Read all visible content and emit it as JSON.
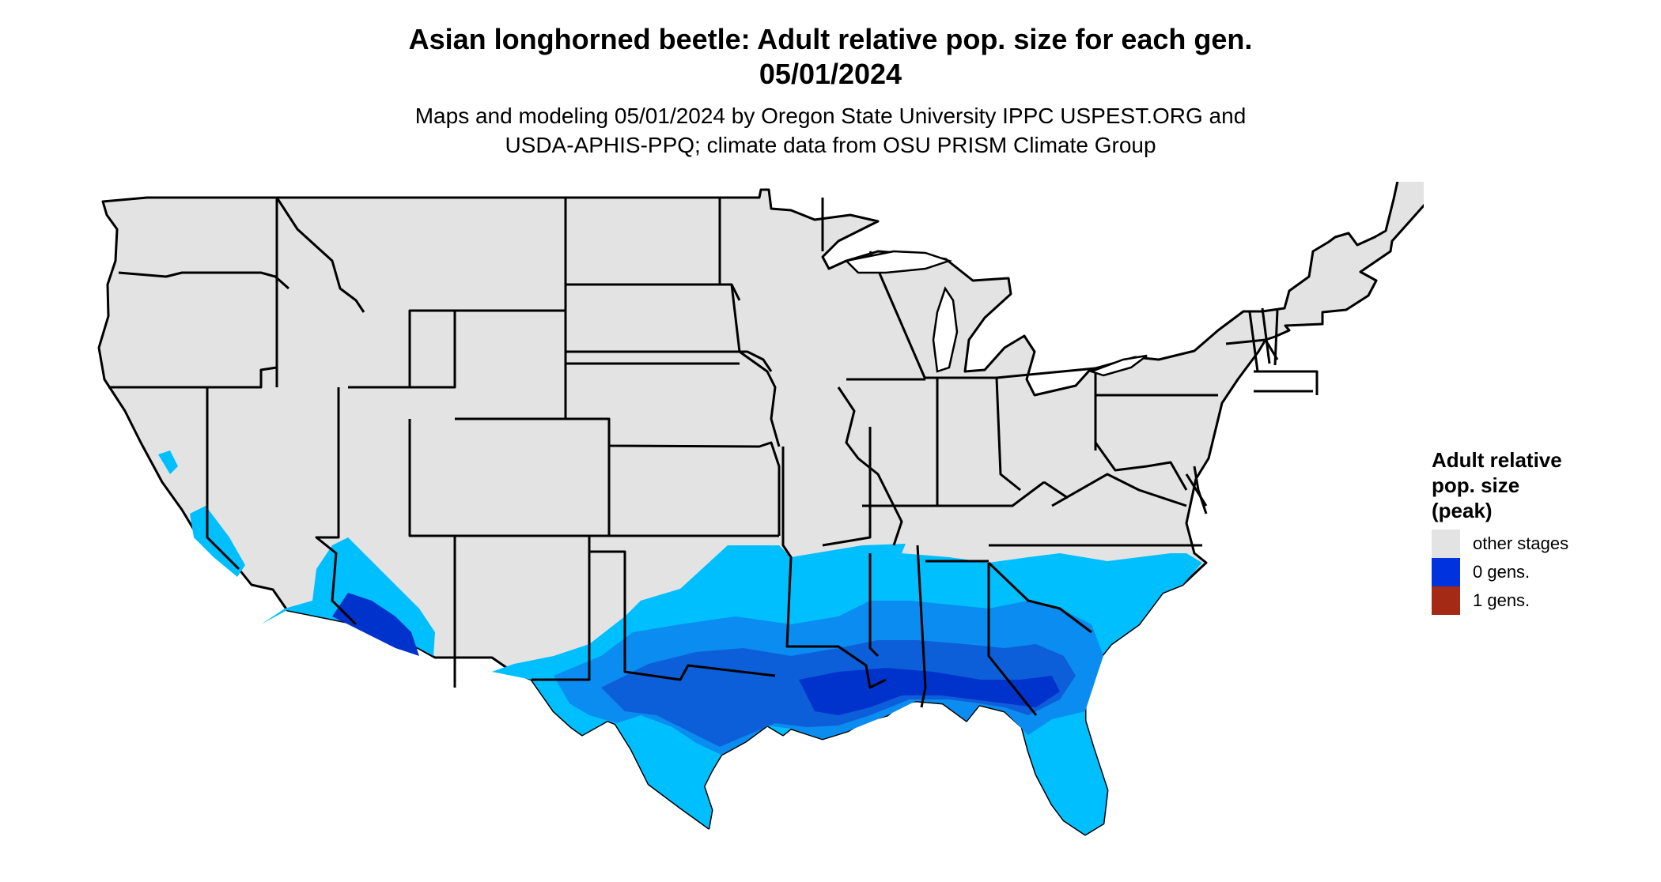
{
  "title": {
    "line1": "Asian longhorned beetle: Adult relative pop. size for each gen.",
    "line2": "05/01/2024"
  },
  "subtitle": {
    "line1": "Maps and modeling 05/01/2024 by Oregon State University IPPC USPEST.ORG and",
    "line2": "USDA-APHIS-PPQ; climate data from OSU PRISM Climate Group"
  },
  "map": {
    "region": "contiguous-united-states",
    "state-boundaries": true,
    "colors": {
      "background": "#e3e3e3",
      "boundary": "#000000",
      "light-blue": "#00bfff",
      "mid-blue": "#0a8cf0",
      "blue": "#0d5fd9",
      "dark-blue": "#0033cc"
    }
  },
  "legend": {
    "title_lines": [
      "Adult relative",
      "pop. size",
      "(peak)"
    ],
    "items": [
      {
        "label": "other stages",
        "color": "#e3e3e3"
      },
      {
        "label": "0 gens.",
        "color": "#0033dd"
      },
      {
        "label": "1 gens.",
        "color": "#a52a15"
      }
    ]
  }
}
